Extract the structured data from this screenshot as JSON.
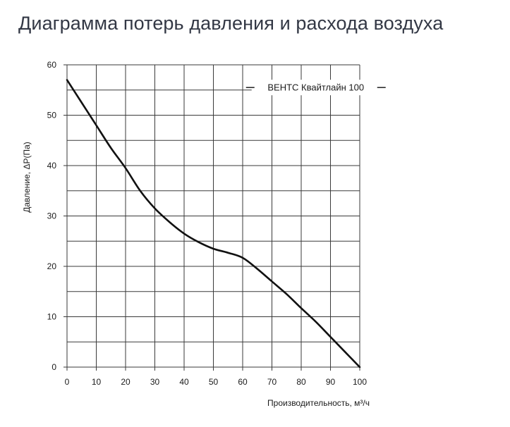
{
  "page": {
    "heading": "Диаграмма потерь давления и расхода воздуха"
  },
  "chart_data": {
    "type": "line",
    "title": "",
    "xlabel": "Производительность, м³/ч",
    "ylabel": "Давление, ΔP(Па)",
    "xlim": [
      0,
      100
    ],
    "ylim": [
      0,
      60
    ],
    "xticks": [
      0,
      10,
      20,
      30,
      40,
      50,
      60,
      70,
      80,
      90,
      100
    ],
    "yticks": [
      0,
      10,
      20,
      30,
      40,
      50,
      60
    ],
    "grid": true,
    "legend_position": "top-right",
    "colors": {
      "line": "#111111",
      "grid": "#3a3a3a",
      "text": "#1a1a1a",
      "heading": "#333845"
    },
    "series": [
      {
        "name": "ВЕНТС Квайтлайн 100",
        "x": [
          0,
          5,
          10,
          15,
          20,
          25,
          30,
          35,
          40,
          45,
          50,
          55,
          60,
          65,
          70,
          75,
          80,
          85,
          90,
          95,
          100
        ],
        "y": [
          57,
          52.5,
          48,
          43.5,
          39.5,
          35,
          31.5,
          28.8,
          26.5,
          24.8,
          23.5,
          22.7,
          21.7,
          19.5,
          17,
          14.5,
          11.7,
          9,
          6,
          3,
          0
        ]
      }
    ]
  }
}
